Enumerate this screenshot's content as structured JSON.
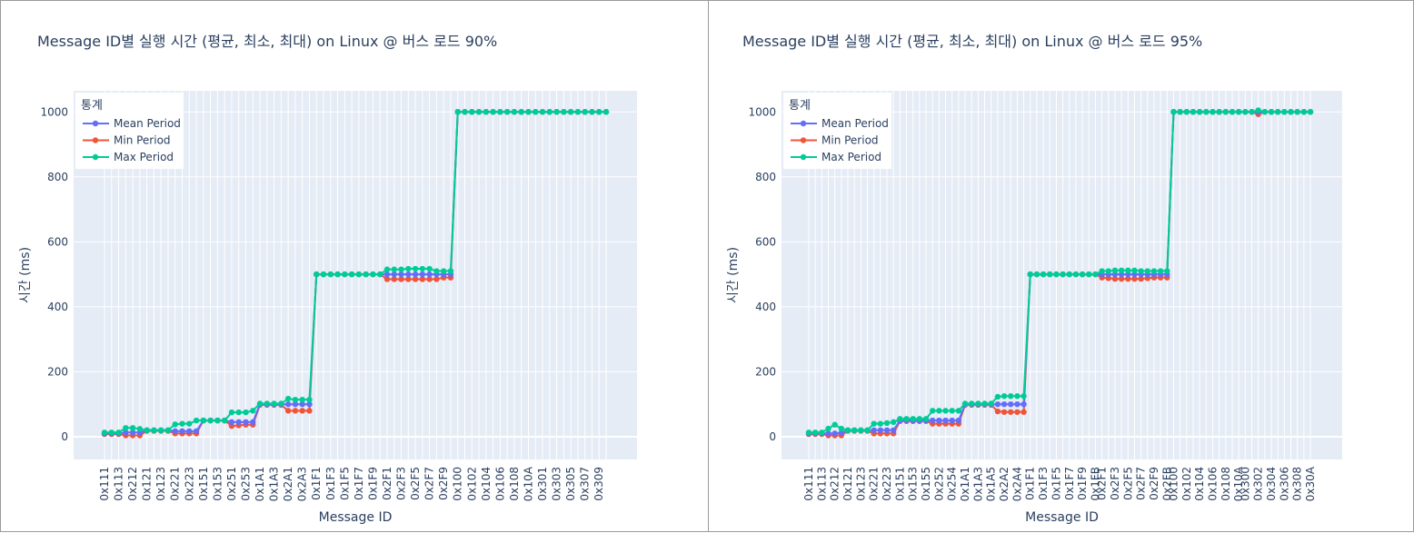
{
  "chart_data": [
    {
      "type": "line",
      "title": "Message ID별 실행 시간 (평균, 최소, 최대) on Linux @ 버스 로드 90%",
      "xlabel": "Message ID",
      "ylabel": "시간 (ms)",
      "ylim": [
        -70,
        1065
      ],
      "yticks": [
        0,
        200,
        400,
        600,
        800,
        1000
      ],
      "legend_title": "통계",
      "legend_position": "top-left",
      "categories": [
        "0x111",
        "0x112",
        "0x113",
        "0x211",
        "0x212",
        "0x213",
        "0x121",
        "0x122",
        "0x123",
        "0x124",
        "0x221",
        "0x222",
        "0x223",
        "0x224",
        "0x151",
        "0x152",
        "0x153",
        "0x154",
        "0x251",
        "0x252",
        "0x253",
        "0x254",
        "0x1A1",
        "0x1A2",
        "0x1A3",
        "0x1A4",
        "0x2A1",
        "0x2A2",
        "0x2A3",
        "0x2A4",
        "0x1F1",
        "0x1F2",
        "0x1F3",
        "0x1F4",
        "0x1F5",
        "0x1F6",
        "0x1F7",
        "0x1F8",
        "0x1F9",
        "0x1FA",
        "0x2F1",
        "0x2F2",
        "0x2F3",
        "0x2F4",
        "0x2F5",
        "0x2F6",
        "0x2F7",
        "0x2F8",
        "0x2F9",
        "0x2FA",
        "0x100",
        "0x101",
        "0x102",
        "0x103",
        "0x104",
        "0x105",
        "0x106",
        "0x107",
        "0x108",
        "0x109",
        "0x10A",
        "0x300",
        "0x301",
        "0x302",
        "0x303",
        "0x304",
        "0x305",
        "0x306",
        "0x307",
        "0x308",
        "0x309",
        "0x30A"
      ],
      "tick_labels": [
        "0x111",
        "0x113",
        "0x212",
        "0x121",
        "0x123",
        "0x221",
        "0x223",
        "0x151",
        "0x153",
        "0x251",
        "0x253",
        "0x1A1",
        "0x1A3",
        "0x2A1",
        "0x2A3",
        "0x1F1",
        "0x1F3",
        "0x1F5",
        "0x1F7",
        "0x1F9",
        "0x2F1",
        "0x2F3",
        "0x2F5",
        "0x2F7",
        "0x2F9",
        "0x100",
        "0x102",
        "0x104",
        "0x106",
        "0x108",
        "0x10A",
        "0x301",
        "0x303",
        "0x305",
        "0x307",
        "0x309"
      ],
      "series": [
        {
          "name": "Mean Period",
          "color": "#636efa",
          "values": [
            10,
            10,
            10,
            13,
            13,
            13,
            20,
            20,
            20,
            20,
            17,
            17,
            17,
            17,
            50,
            50,
            50,
            50,
            45,
            45,
            45,
            45,
            100,
            100,
            100,
            100,
            100,
            100,
            100,
            100,
            500,
            500,
            500,
            500,
            500,
            500,
            500,
            500,
            500,
            500,
            500,
            500,
            500,
            500,
            500,
            500,
            500,
            500,
            500,
            500,
            1000,
            1000,
            1000,
            1000,
            1000,
            1000,
            1000,
            1000,
            1000,
            1000,
            1000,
            1000,
            1000,
            1000,
            1000,
            1000,
            1000,
            1000,
            1000,
            1000,
            1000,
            1000
          ]
        },
        {
          "name": "Min Period",
          "color": "#ef553b",
          "values": [
            8,
            8,
            8,
            4,
            4,
            4,
            18,
            18,
            18,
            18,
            10,
            10,
            10,
            10,
            50,
            50,
            50,
            50,
            33,
            35,
            37,
            37,
            98,
            98,
            98,
            98,
            80,
            80,
            80,
            80,
            500,
            500,
            500,
            500,
            500,
            500,
            500,
            500,
            500,
            500,
            485,
            485,
            485,
            485,
            485,
            485,
            485,
            485,
            490,
            490,
            1000,
            1000,
            1000,
            1000,
            1000,
            1000,
            1000,
            1000,
            1000,
            1000,
            1000,
            1000,
            1000,
            1000,
            1000,
            1000,
            1000,
            1000,
            1000,
            1000,
            1000,
            1000
          ]
        },
        {
          "name": "Max Period",
          "color": "#00cc96",
          "values": [
            13,
            13,
            13,
            27,
            27,
            24,
            20,
            20,
            20,
            20,
            38,
            40,
            40,
            50,
            50,
            50,
            50,
            50,
            75,
            75,
            75,
            80,
            102,
            102,
            102,
            102,
            117,
            114,
            114,
            114,
            500,
            500,
            500,
            500,
            500,
            500,
            500,
            500,
            500,
            500,
            515,
            515,
            515,
            517,
            517,
            517,
            517,
            510,
            510,
            510,
            1000,
            1000,
            1000,
            1000,
            1000,
            1000,
            1000,
            1000,
            1000,
            1000,
            1000,
            1000,
            1000,
            1000,
            1000,
            1000,
            1000,
            1000,
            1000,
            1000,
            1000,
            1000
          ]
        }
      ]
    },
    {
      "type": "line",
      "title": "Message ID별 실행 시간 (평균, 최소, 최대) on Linux @ 버스 로드 95%",
      "xlabel": "Message ID",
      "ylabel": "시간 (ms)",
      "ylim": [
        -70,
        1065
      ],
      "yticks": [
        0,
        200,
        400,
        600,
        800,
        1000
      ],
      "legend_title": "통계",
      "legend_position": "top-left",
      "categories": [
        "0x111",
        "0x112",
        "0x113",
        "0x211",
        "0x212",
        "0x213",
        "0x121",
        "0x122",
        "0x123",
        "0x124",
        "0x221",
        "0x222",
        "0x223",
        "0x224",
        "0x151",
        "0x152",
        "0x153",
        "0x154",
        "0x155",
        "0x251",
        "0x252",
        "0x253",
        "0x254",
        "0x255",
        "0x1A1",
        "0x1A2",
        "0x1A3",
        "0x1A4",
        "0x1A5",
        "0x2A1",
        "0x2A2",
        "0x2A3",
        "0x2A4",
        "0x2A5",
        "0x1F1",
        "0x1F2",
        "0x1F3",
        "0x1F4",
        "0x1F5",
        "0x1F6",
        "0x1F7",
        "0x1F8",
        "0x1F9",
        "0x1FA",
        "0x1FB",
        "0x2F1",
        "0x2F2",
        "0x2F3",
        "0x2F4",
        "0x2F5",
        "0x2F6",
        "0x2F7",
        "0x2F8",
        "0x2F9",
        "0x2FA",
        "0x2FB",
        "0x100",
        "0x101",
        "0x102",
        "0x103",
        "0x104",
        "0x105",
        "0x106",
        "0x107",
        "0x108",
        "0x109",
        "0x10A",
        "0x300",
        "0x301",
        "0x302",
        "0x303",
        "0x304",
        "0x305",
        "0x306",
        "0x307",
        "0x308",
        "0x309",
        "0x30A"
      ],
      "tick_labels": [
        "0x111",
        "0x113",
        "0x212",
        "0x121",
        "0x123",
        "0x221",
        "0x223",
        "0x151",
        "0x153",
        "0x155",
        "0x252",
        "0x254",
        "0x1A1",
        "0x1A3",
        "0x1A5",
        "0x2A2",
        "0x2A4",
        "0x1F1",
        "0x1F3",
        "0x1F5",
        "0x1F7",
        "0x1F9",
        "0x1FB",
        "0x2F1",
        "0x2F3",
        "0x2F5",
        "0x2F7",
        "0x2F9",
        "0x2FB",
        "0x100",
        "0x102",
        "0x104",
        "0x106",
        "0x108",
        "0x10A",
        "0x300",
        "0x302",
        "0x304",
        "0x306",
        "0x308",
        "0x30A"
      ],
      "series": [
        {
          "name": "Mean Period",
          "color": "#636efa",
          "values": [
            10,
            10,
            10,
            10,
            10,
            12,
            20,
            20,
            20,
            20,
            20,
            20,
            20,
            20,
            50,
            50,
            50,
            50,
            50,
            50,
            50,
            50,
            50,
            50,
            100,
            100,
            100,
            100,
            100,
            100,
            100,
            100,
            100,
            100,
            500,
            500,
            500,
            500,
            500,
            500,
            500,
            500,
            500,
            500,
            500,
            500,
            500,
            500,
            500,
            500,
            500,
            500,
            500,
            500,
            500,
            500,
            1000,
            1000,
            1000,
            1000,
            1000,
            1000,
            1000,
            1000,
            1000,
            1000,
            1000,
            1000,
            1000,
            1000,
            1000,
            1000,
            1000,
            1000,
            1000,
            1000,
            1000,
            1000
          ]
        },
        {
          "name": "Min Period",
          "color": "#ef553b",
          "values": [
            8,
            8,
            8,
            4,
            4,
            4,
            18,
            18,
            18,
            18,
            10,
            10,
            10,
            10,
            48,
            48,
            48,
            48,
            48,
            40,
            40,
            40,
            40,
            40,
            98,
            98,
            98,
            98,
            98,
            78,
            76,
            76,
            76,
            76,
            500,
            500,
            500,
            500,
            500,
            500,
            500,
            500,
            500,
            500,
            500,
            490,
            488,
            486,
            486,
            486,
            486,
            486,
            488,
            490,
            490,
            490,
            1000,
            1000,
            1000,
            1000,
            1000,
            1000,
            1000,
            1000,
            1000,
            1000,
            1000,
            1000,
            1000,
            993,
            1000,
            1000,
            1000,
            1000,
            1000,
            1000,
            1000,
            1000
          ]
        },
        {
          "name": "Max Period",
          "color": "#00cc96",
          "values": [
            13,
            13,
            13,
            25,
            37,
            25,
            20,
            20,
            20,
            20,
            40,
            40,
            42,
            45,
            55,
            55,
            55,
            55,
            55,
            80,
            80,
            80,
            80,
            80,
            102,
            102,
            102,
            102,
            102,
            123,
            125,
            125,
            125,
            125,
            500,
            500,
            500,
            500,
            500,
            500,
            500,
            500,
            500,
            500,
            500,
            510,
            510,
            512,
            512,
            512,
            512,
            510,
            510,
            510,
            510,
            510,
            1000,
            1000,
            1000,
            1000,
            1000,
            1000,
            1000,
            1000,
            1000,
            1000,
            1000,
            1000,
            1000,
            1005,
            1000,
            1000,
            1000,
            1000,
            1000,
            1000,
            1000,
            1000
          ]
        }
      ]
    }
  ]
}
